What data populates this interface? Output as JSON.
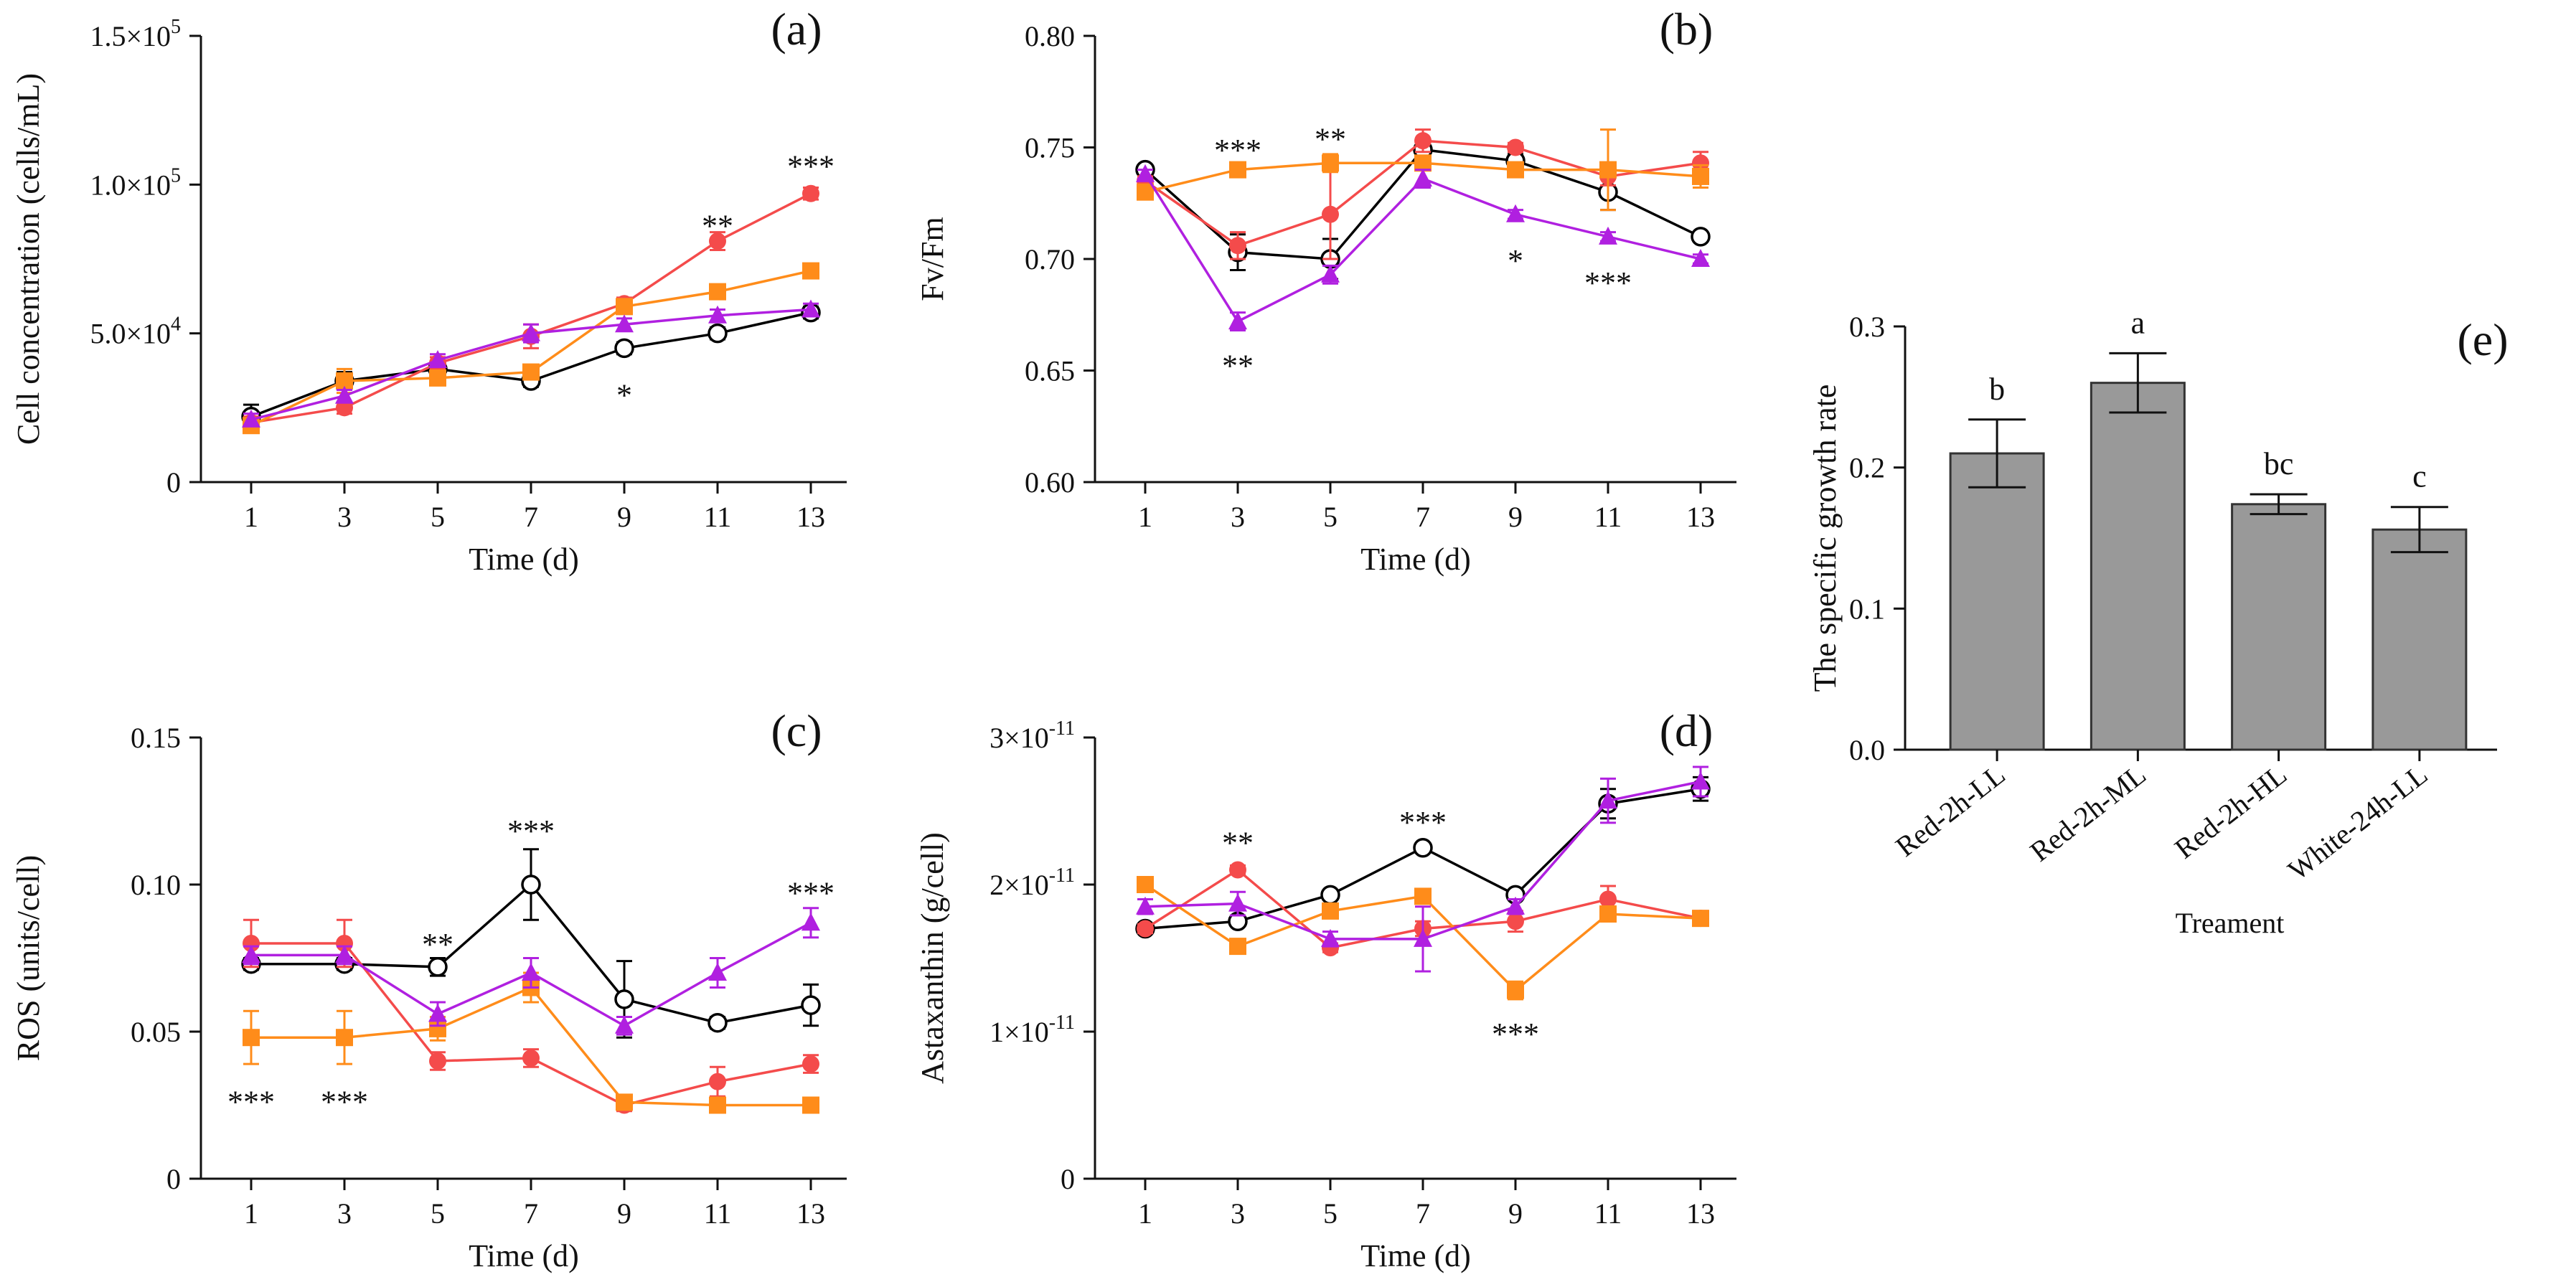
{
  "chart_data": [
    {
      "id": "a",
      "type": "line",
      "panel_label": "(a)",
      "xlabel": "Time (d)",
      "ylabel": "Cell concentration (cells/mL)",
      "x": [
        1,
        3,
        5,
        7,
        9,
        11,
        13
      ],
      "ylim": [
        0,
        150000
      ],
      "y_ticks": [
        {
          "value": 0,
          "label": "0"
        },
        {
          "value": 50000,
          "label": "5.0×10^4"
        },
        {
          "value": 100000,
          "label": "1.0×10^5"
        },
        {
          "value": 150000,
          "label": "1.5×10^5"
        }
      ],
      "series": [
        {
          "name": "Red-2h-LL",
          "color": "#000000",
          "marker": "circle-open",
          "values": [
            22000,
            34000,
            38000,
            34000,
            45000,
            50000,
            57000
          ],
          "errors": [
            4000,
            3000,
            2000,
            2000,
            2000,
            2000,
            2000
          ]
        },
        {
          "name": "Red-2h-ML",
          "color": "#f44b4b",
          "marker": "circle",
          "values": [
            20000,
            25000,
            40000,
            49000,
            60000,
            81000,
            97000
          ],
          "errors": [
            2000,
            2000,
            2000,
            4000,
            2000,
            3000,
            2000
          ]
        },
        {
          "name": "Red-2h-HL",
          "color": "#ff8c1a",
          "marker": "square",
          "values": [
            19000,
            34000,
            35000,
            37000,
            59000,
            64000,
            71000
          ],
          "errors": [
            2000,
            4000,
            2000,
            2000,
            2000,
            2000,
            2000
          ]
        },
        {
          "name": "White-24h-LL",
          "color": "#b020e0",
          "marker": "triangle",
          "values": [
            21000,
            29000,
            41000,
            50000,
            53000,
            56000,
            58000
          ],
          "errors": [
            2000,
            2000,
            2000,
            3000,
            2000,
            2000,
            2000
          ]
        }
      ],
      "annotations": [
        {
          "x": 9,
          "y": 29000,
          "text": "*"
        },
        {
          "x": 11,
          "y": 86000,
          "text": "**"
        },
        {
          "x": 13,
          "y": 106000,
          "text": "***"
        }
      ]
    },
    {
      "id": "b",
      "type": "line",
      "panel_label": "(b)",
      "xlabel": "Time (d)",
      "ylabel": "Fv/Fm",
      "x": [
        1,
        3,
        5,
        7,
        9,
        11,
        13
      ],
      "ylim": [
        0.6,
        0.8
      ],
      "y_ticks": [
        {
          "value": 0.6,
          "label": "0.60"
        },
        {
          "value": 0.65,
          "label": "0.65"
        },
        {
          "value": 0.7,
          "label": "0.70"
        },
        {
          "value": 0.75,
          "label": "0.75"
        },
        {
          "value": 0.8,
          "label": "0.80"
        }
      ],
      "series": [
        {
          "name": "Red-2h-LL",
          "color": "#000000",
          "marker": "circle-open",
          "values": [
            0.74,
            0.703,
            0.7,
            0.749,
            0.744,
            0.73,
            0.71
          ],
          "errors": [
            0.002,
            0.008,
            0.009,
            0.004,
            0.003,
            0.008,
            0.002
          ]
        },
        {
          "name": "Red-2h-ML",
          "color": "#f44b4b",
          "marker": "circle",
          "values": [
            0.735,
            0.706,
            0.72,
            0.753,
            0.75,
            0.737,
            0.743
          ],
          "errors": [
            0.002,
            0.006,
            0.02,
            0.005,
            0.002,
            0.004,
            0.005
          ]
        },
        {
          "name": "Red-2h-HL",
          "color": "#ff8c1a",
          "marker": "square",
          "values": [
            0.73,
            0.74,
            0.743,
            0.743,
            0.74,
            0.74,
            0.737
          ],
          "errors": [
            0.002,
            0.002,
            0.004,
            0.003,
            0.002,
            0.018,
            0.005
          ]
        },
        {
          "name": "White-24h-LL",
          "color": "#b020e0",
          "marker": "triangle",
          "values": [
            0.738,
            0.672,
            0.693,
            0.736,
            0.72,
            0.71,
            0.7
          ],
          "errors": [
            0.002,
            0.004,
            0.004,
            0.004,
            0.002,
            0.002,
            0.002
          ]
        }
      ],
      "annotations": [
        {
          "x": 3,
          "y": 0.7485,
          "text": "***"
        },
        {
          "x": 5,
          "y": 0.7535,
          "text": "**"
        },
        {
          "x": 3,
          "y": 0.652,
          "text": "**"
        },
        {
          "x": 9,
          "y": 0.699,
          "text": "*"
        },
        {
          "x": 11,
          "y": 0.689,
          "text": "***"
        }
      ]
    },
    {
      "id": "c",
      "type": "line",
      "panel_label": "(c)",
      "xlabel": "Time (d)",
      "ylabel": "ROS (units/cell)",
      "x": [
        1,
        3,
        5,
        7,
        9,
        11,
        13
      ],
      "ylim": [
        0,
        0.15
      ],
      "y_ticks": [
        {
          "value": 0,
          "label": "0"
        },
        {
          "value": 0.05,
          "label": "0.05"
        },
        {
          "value": 0.1,
          "label": "0.10"
        },
        {
          "value": 0.15,
          "label": "0.15"
        }
      ],
      "series": [
        {
          "name": "Red-2h-LL",
          "color": "#000000",
          "marker": "circle-open",
          "values": [
            0.073,
            0.073,
            0.072,
            0.1,
            0.061,
            0.053,
            0.059
          ],
          "errors": [
            0.002,
            0.002,
            0.003,
            0.012,
            0.013,
            0.002,
            0.007
          ]
        },
        {
          "name": "Red-2h-ML",
          "color": "#f44b4b",
          "marker": "circle",
          "values": [
            0.08,
            0.08,
            0.04,
            0.041,
            0.025,
            0.033,
            0.039
          ],
          "errors": [
            0.008,
            0.008,
            0.003,
            0.003,
            0.002,
            0.005,
            0.003
          ]
        },
        {
          "name": "Red-2h-HL",
          "color": "#ff8c1a",
          "marker": "square",
          "values": [
            0.048,
            0.048,
            0.051,
            0.065,
            0.026,
            0.025,
            0.025
          ],
          "errors": [
            0.009,
            0.009,
            0.004,
            0.005,
            0.002,
            0.002,
            0.002
          ]
        },
        {
          "name": "White-24h-LL",
          "color": "#b020e0",
          "marker": "triangle",
          "values": [
            0.076,
            0.076,
            0.056,
            0.07,
            0.052,
            0.07,
            0.087
          ],
          "errors": [
            0.003,
            0.003,
            0.004,
            0.005,
            0.003,
            0.005,
            0.005
          ]
        }
      ],
      "annotations": [
        {
          "x": 1,
          "y": 0.026,
          "text": "***"
        },
        {
          "x": 3,
          "y": 0.026,
          "text": "***"
        },
        {
          "x": 5,
          "y": 0.0795,
          "text": "**"
        },
        {
          "x": 7,
          "y": 0.118,
          "text": "***"
        },
        {
          "x": 13,
          "y": 0.097,
          "text": "***"
        }
      ]
    },
    {
      "id": "d",
      "type": "line",
      "panel_label": "(d)",
      "xlabel": "Time (d)",
      "ylabel": "Astaxanthin (g/cell)",
      "x": [
        1,
        3,
        5,
        7,
        9,
        11,
        13
      ],
      "ylim": [
        0,
        3e-11
      ],
      "y_ticks": [
        {
          "value": 0,
          "label": "0"
        },
        {
          "value": 1e-11,
          "label": "1×10^-11"
        },
        {
          "value": 2e-11,
          "label": "2×10^-11"
        },
        {
          "value": 3e-11,
          "label": "3×10^-11"
        }
      ],
      "series": [
        {
          "name": "Red-2h-LL",
          "color": "#000000",
          "marker": "circle-open",
          "values": [
            1.7e-11,
            1.75e-11,
            1.93e-11,
            2.25e-11,
            1.93e-11,
            2.55e-11,
            2.65e-11
          ],
          "errors": [
            3e-13,
            3e-13,
            3e-13,
            3e-13,
            3e-13,
            1e-12,
            8e-13
          ]
        },
        {
          "name": "Red-2h-ML",
          "color": "#f44b4b",
          "marker": "circle",
          "values": [
            1.7e-11,
            2.1e-11,
            1.57e-11,
            1.7e-11,
            1.75e-11,
            1.9e-11,
            1.77e-11
          ],
          "errors": [
            3e-13,
            3e-13,
            3e-13,
            5e-13,
            7e-13,
            9e-13,
            5e-13
          ]
        },
        {
          "name": "Red-2h-HL",
          "color": "#ff8c1a",
          "marker": "square",
          "values": [
            2e-11,
            1.58e-11,
            1.82e-11,
            1.92e-11,
            1.28e-11,
            1.8e-11,
            1.77e-11
          ],
          "errors": [
            3e-13,
            3e-13,
            3e-13,
            3e-13,
            6e-13,
            3e-13,
            3e-13
          ]
        },
        {
          "name": "White-24h-LL",
          "color": "#b020e0",
          "marker": "triangle",
          "values": [
            1.85e-11,
            1.87e-11,
            1.63e-11,
            1.63e-11,
            1.85e-11,
            2.57e-11,
            2.7e-11
          ],
          "errors": [
            5e-13,
            8e-13,
            5e-13,
            2.2e-12,
            5e-13,
            1.5e-12,
            1e-12
          ]
        }
      ],
      "annotations": [
        {
          "x": 3,
          "y": 2.28e-11,
          "text": "**"
        },
        {
          "x": 7,
          "y": 2.42e-11,
          "text": "***"
        },
        {
          "x": 9,
          "y": 9.8e-12,
          "text": "***"
        }
      ]
    },
    {
      "id": "e",
      "type": "bar",
      "panel_label": "(e)",
      "xlabel": "Treament",
      "ylabel": "The specific growth rate",
      "categories": [
        "Red-2h-LL",
        "Red-2h-ML",
        "Red-2h-HL",
        "White-24h-LL"
      ],
      "values": [
        0.21,
        0.26,
        0.174,
        0.156
      ],
      "errors": [
        0.024,
        0.021,
        0.007,
        0.016
      ],
      "letters": [
        "b",
        "a",
        "bc",
        "c"
      ],
      "ylim": [
        0,
        0.3
      ],
      "y_ticks": [
        {
          "value": 0,
          "label": "0.0"
        },
        {
          "value": 0.1,
          "label": "0.1"
        },
        {
          "value": 0.2,
          "label": "0.2"
        },
        {
          "value": 0.3,
          "label": "0.3"
        }
      ],
      "bar_color": "#999999"
    }
  ]
}
